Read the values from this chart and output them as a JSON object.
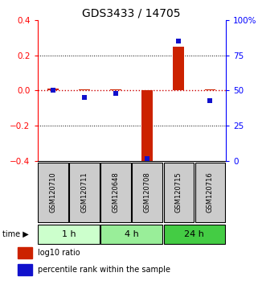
{
  "title": "GDS3433 / 14705",
  "samples": [
    "GSM120710",
    "GSM120711",
    "GSM120648",
    "GSM120708",
    "GSM120715",
    "GSM120716"
  ],
  "log10_ratio": [
    0.01,
    0.005,
    0.005,
    -0.42,
    0.25,
    0.005
  ],
  "percentile_rank": [
    50,
    45,
    48,
    2,
    85,
    43
  ],
  "ylim_left": [
    -0.4,
    0.4
  ],
  "ylim_right": [
    0,
    100
  ],
  "yticks_left": [
    -0.4,
    -0.2,
    0.0,
    0.2,
    0.4
  ],
  "yticks_right": [
    0,
    25,
    50,
    75,
    100
  ],
  "ytick_labels_right": [
    "0",
    "25",
    "50",
    "75",
    "100%"
  ],
  "bar_color": "#cc2200",
  "dot_color": "#1111cc",
  "zeroline_color": "#cc0000",
  "gridline_color": "#000000",
  "time_groups": [
    {
      "label": "1 h",
      "start": 0,
      "end": 2,
      "color": "#ccffcc"
    },
    {
      "label": "4 h",
      "start": 2,
      "end": 4,
      "color": "#99ee99"
    },
    {
      "label": "24 h",
      "start": 4,
      "end": 6,
      "color": "#44cc44"
    }
  ],
  "legend_items": [
    {
      "label": "log10 ratio",
      "color": "#cc2200"
    },
    {
      "label": "percentile rank within the sample",
      "color": "#1111cc"
    }
  ],
  "background_color": "#ffffff",
  "plot_bg_color": "#ffffff",
  "sample_box_color": "#cccccc",
  "time_label": "time"
}
